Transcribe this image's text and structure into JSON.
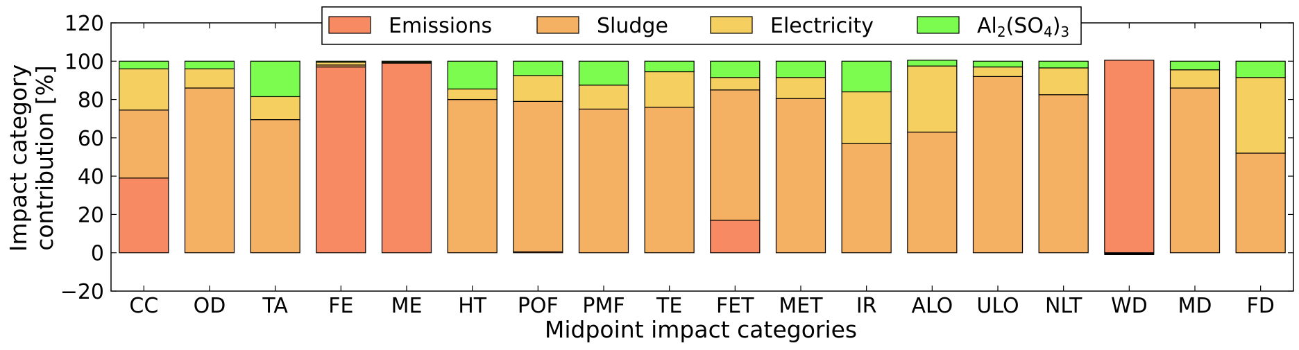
{
  "chart_data": {
    "type": "bar",
    "stacked": true,
    "xlabel": "Midpoint impact categories",
    "ylabel_lines": [
      "Impact category",
      "contribution [%]"
    ],
    "ylim": [
      -20,
      120
    ],
    "yticks": [
      -20,
      0,
      20,
      40,
      60,
      80,
      100,
      120
    ],
    "ytick_labels": [
      "−20",
      "0",
      "20",
      "40",
      "60",
      "80",
      "100",
      "120"
    ],
    "grid": false,
    "legend_position": "top-center",
    "categories": [
      "CC",
      "OD",
      "TA",
      "FE",
      "ME",
      "HT",
      "POF",
      "PMF",
      "TE",
      "FET",
      "MET",
      "IR",
      "ALO",
      "ULO",
      "NLT",
      "WD",
      "MD",
      "FD"
    ],
    "series": [
      {
        "name": "Emissions",
        "color": "#f78a62",
        "values": [
          39,
          0,
          0,
          97,
          99,
          0,
          0.5,
          0,
          0,
          17,
          0,
          0,
          0,
          0,
          0,
          100.5,
          0,
          0
        ]
      },
      {
        "name": "Sludge",
        "color": "#f4b063",
        "values": [
          35.5,
          86,
          69.5,
          1,
          0.5,
          80,
          78.5,
          75,
          76,
          68,
          80.5,
          57,
          63,
          92,
          82.5,
          0,
          86,
          52
        ]
      },
      {
        "name": "Electricity",
        "color": "#f5d060",
        "values": [
          21.5,
          10,
          12,
          1.5,
          0,
          5.5,
          13.5,
          12.5,
          18.5,
          6.5,
          11,
          27,
          34.5,
          5,
          14,
          0,
          9.5,
          39.5
        ]
      },
      {
        "name": "Al2(SO4)3",
        "color": "#7bfc4e",
        "values": [
          4,
          4,
          18.5,
          0.5,
          0.5,
          14.5,
          7.5,
          12.5,
          5.5,
          8.5,
          8.5,
          16,
          3,
          3,
          3.5,
          0,
          4.5,
          8.5
        ]
      }
    ],
    "negative_bars": [
      {
        "category": "WD",
        "value": -1
      }
    ]
  }
}
